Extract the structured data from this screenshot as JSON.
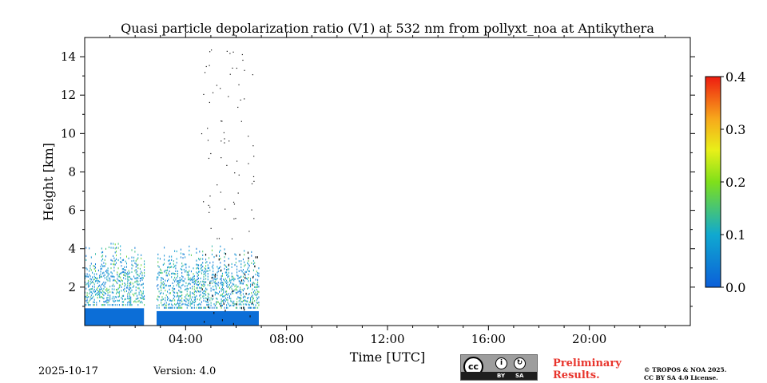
{
  "chart_data": {
    "type": "heatmap",
    "title": "Quasi particle depolarization ratio (V1) at 532 nm from pollyxt_noa at Antikythera",
    "xlabel": "Time [UTC]",
    "ylabel": "Height [km]",
    "xlim_hours": [
      0,
      24
    ],
    "ylim_km": [
      0,
      15
    ],
    "x_ticks": [
      {
        "hour": 4,
        "label": "04:00"
      },
      {
        "hour": 8,
        "label": "08:00"
      },
      {
        "hour": 12,
        "label": "12:00"
      },
      {
        "hour": 16,
        "label": "16:00"
      },
      {
        "hour": 20,
        "label": "20:00"
      }
    ],
    "y_ticks": [
      {
        "km": 2,
        "label": "2"
      },
      {
        "km": 4,
        "label": "4"
      },
      {
        "km": 6,
        "label": "6"
      },
      {
        "km": 8,
        "label": "8"
      },
      {
        "km": 10,
        "label": "10"
      },
      {
        "km": 12,
        "label": "12"
      },
      {
        "km": 14,
        "label": "14"
      }
    ],
    "colorbar": {
      "min": 0.0,
      "max": 0.4,
      "colormap": "jet",
      "ticks": [
        {
          "value": 0.0,
          "label": "0.0"
        },
        {
          "value": 0.1,
          "label": "0.1"
        },
        {
          "value": 0.2,
          "label": "0.2"
        },
        {
          "value": 0.3,
          "label": "0.3"
        },
        {
          "value": 0.4,
          "label": "0.4"
        }
      ]
    },
    "data_segments": [
      {
        "start_hour": 0.0,
        "end_hour": 2.35,
        "top_km": 4.4,
        "low_layer_top_km": 0.9,
        "low_value": 0.02,
        "aerosol_value": 0.13
      },
      {
        "start_hour": 2.85,
        "end_hour": 6.9,
        "top_km": 4.2,
        "low_layer_top_km": 0.75,
        "low_value": 0.02,
        "aerosol_value": 0.12
      }
    ],
    "grid": false
  },
  "footer": {
    "date": "2025-10-17",
    "version": "Version: 4.0",
    "preliminary_line1": "Preliminary",
    "preliminary_line2": "Results.",
    "copyright_line1": "© TROPOS & NOA 2025.",
    "copyright_line2": "CC BY SA 4.0 License.",
    "license_badge": {
      "cc": "cc",
      "by": "BY",
      "sa": "SA"
    }
  },
  "colors": {
    "low_layer": "#0b62d8",
    "annotation": "#e8342c"
  }
}
